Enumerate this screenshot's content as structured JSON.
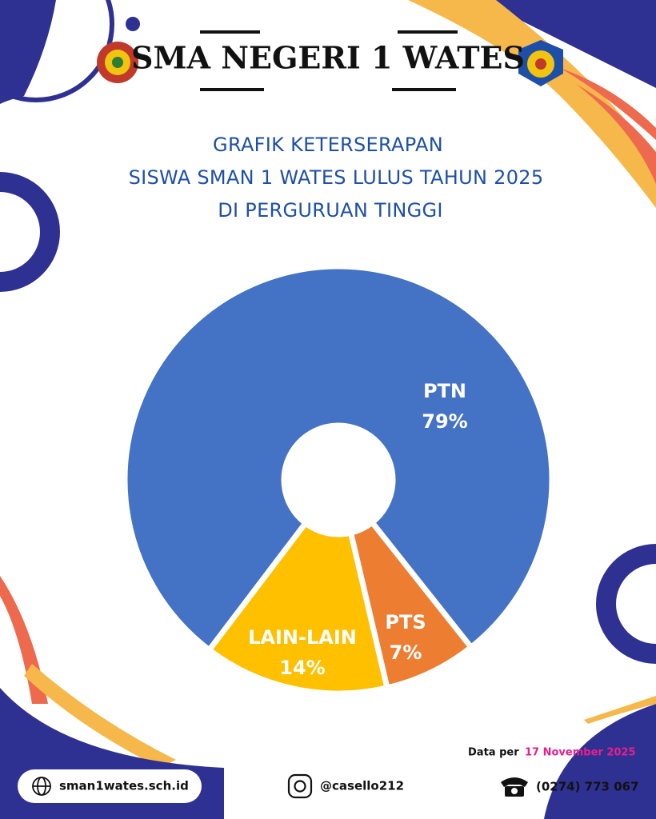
{
  "header": {
    "title": "SMA NEGERI 1 WATES"
  },
  "chart_data": {
    "type": "pie",
    "title": [
      "GRAFIK KETERSERAPAN",
      "SISWA SMAN 1 WATES LULUS TAHUN 2025",
      "DI PERGURUAN TINGGI"
    ],
    "categories": [
      "PTN",
      "PTS",
      "LAIN-LAIN"
    ],
    "values": [
      79,
      7,
      14
    ],
    "value_labels": [
      "79%",
      "7%",
      "14%"
    ],
    "colors": [
      "#4472c4",
      "#ed7d31",
      "#ffc000"
    ],
    "donut": true
  },
  "footer": {
    "date_prefix": "Data per",
    "date": "17 November 2025",
    "website": "sman1wates.sch.id",
    "instagram": "@casello212",
    "phone": "(0274) 773 067"
  }
}
